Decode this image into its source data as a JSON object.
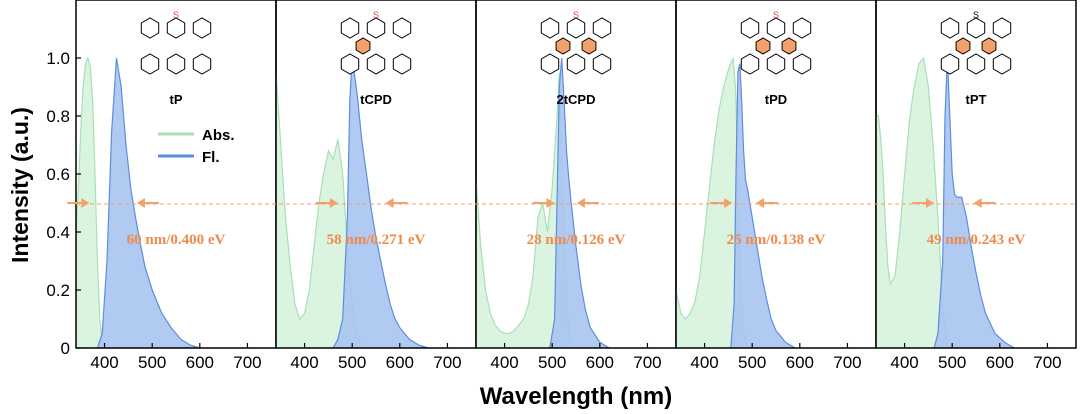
{
  "figure": {
    "ylabel": "Intensity (a.u.)",
    "xlabel": "Wavelength (nm)",
    "legend": {
      "abs_label": "Abs.",
      "fl_label": "Fl."
    }
  },
  "colors": {
    "abs_fill": "#d6f3dd",
    "abs_line": "#a8e0b6",
    "fl_fill": "#a9c4ef",
    "fl_line": "#5b8ede",
    "accent": "#f4a06a",
    "accent_text": "#f08a4b"
  },
  "chart_data": [
    {
      "type": "area",
      "name": "tP",
      "fwhm": "60 nm/0.400 eV",
      "xlim": [
        340,
        760
      ],
      "ylim": [
        0,
        1.2
      ],
      "xticks": [
        400,
        500,
        600,
        700
      ],
      "yticks": [
        0,
        0.2,
        0.4,
        0.6,
        0.8,
        1.0
      ],
      "half_max": 0.5,
      "absorption": {
        "x": [
          340,
          345,
          350,
          355,
          360,
          365,
          370,
          375,
          380,
          385,
          390,
          395,
          400
        ],
        "y": [
          0.4,
          0.55,
          0.75,
          0.9,
          0.98,
          1.0,
          0.97,
          0.85,
          0.6,
          0.3,
          0.1,
          0.02,
          0
        ]
      },
      "fluorescence": {
        "x": [
          385,
          395,
          405,
          415,
          425,
          435,
          445,
          455,
          465,
          475,
          485,
          500,
          520,
          540,
          560,
          580,
          600
        ],
        "y": [
          0,
          0.05,
          0.3,
          0.75,
          1.0,
          0.9,
          0.7,
          0.55,
          0.45,
          0.36,
          0.28,
          0.2,
          0.12,
          0.07,
          0.03,
          0.01,
          0
        ]
      },
      "arrows": [
        368,
        468
      ]
    },
    {
      "type": "area",
      "name": "tCPD",
      "fwhm": "58 nm/0.271 eV",
      "xlim": [
        340,
        760
      ],
      "ylim": [
        0,
        1.2
      ],
      "xticks": [
        400,
        500,
        600,
        700
      ],
      "yticks": [
        0,
        0.2,
        0.4,
        0.6,
        0.8,
        1.0
      ],
      "half_max": 0.5,
      "absorption": {
        "x": [
          340,
          350,
          360,
          370,
          380,
          390,
          400,
          410,
          420,
          430,
          440,
          450,
          460,
          470,
          480,
          490,
          500,
          510,
          520
        ],
        "y": [
          0.95,
          0.7,
          0.45,
          0.28,
          0.15,
          0.1,
          0.12,
          0.2,
          0.35,
          0.5,
          0.6,
          0.68,
          0.65,
          0.72,
          0.6,
          0.35,
          0.15,
          0.05,
          0
        ]
      },
      "fluorescence": {
        "x": [
          460,
          470,
          480,
          490,
          495,
          500,
          510,
          520,
          530,
          540,
          550,
          560,
          570,
          580,
          590,
          600,
          620,
          640,
          660
        ],
        "y": [
          0,
          0.03,
          0.1,
          0.45,
          0.85,
          1.0,
          0.88,
          0.72,
          0.6,
          0.48,
          0.38,
          0.3,
          0.22,
          0.15,
          0.1,
          0.07,
          0.03,
          0.01,
          0
        ]
      },
      "arrows": [
        470,
        570
      ]
    },
    {
      "type": "area",
      "name": "2tCPD",
      "fwhm": "28 nm/0.126 eV",
      "xlim": [
        340,
        760
      ],
      "ylim": [
        0,
        1.2
      ],
      "xticks": [
        400,
        500,
        600,
        700
      ],
      "yticks": [
        0,
        0.2,
        0.4,
        0.6,
        0.8,
        1.0
      ],
      "half_max": 0.5,
      "absorption": {
        "x": [
          340,
          350,
          360,
          370,
          380,
          390,
          400,
          410,
          420,
          430,
          440,
          450,
          460,
          470,
          480,
          490,
          500,
          510,
          515,
          520,
          530,
          540
        ],
        "y": [
          0.58,
          0.35,
          0.2,
          0.12,
          0.08,
          0.06,
          0.05,
          0.05,
          0.06,
          0.08,
          0.1,
          0.15,
          0.25,
          0.45,
          0.5,
          0.4,
          0.55,
          0.8,
          0.95,
          0.7,
          0.15,
          0
        ]
      },
      "fluorescence": {
        "x": [
          495,
          505,
          510,
          515,
          520,
          525,
          530,
          535,
          540,
          550,
          560,
          570,
          580,
          600,
          620
        ],
        "y": [
          0,
          0.1,
          0.5,
          0.9,
          1.0,
          0.85,
          0.68,
          0.58,
          0.5,
          0.35,
          0.22,
          0.13,
          0.07,
          0.02,
          0
        ]
      },
      "arrows": [
        505,
        552
      ]
    },
    {
      "type": "area",
      "name": "tPD",
      "fwhm": "25 nm/0.138 eV",
      "xlim": [
        340,
        760
      ],
      "ylim": [
        0,
        1.2
      ],
      "xticks": [
        400,
        500,
        600,
        700
      ],
      "yticks": [
        0,
        0.2,
        0.4,
        0.6,
        0.8,
        1.0
      ],
      "half_max": 0.5,
      "absorption": {
        "x": [
          340,
          350,
          360,
          370,
          380,
          390,
          400,
          410,
          420,
          430,
          440,
          450,
          460,
          465,
          470,
          475,
          480,
          490
        ],
        "y": [
          0.2,
          0.12,
          0.1,
          0.12,
          0.16,
          0.25,
          0.4,
          0.55,
          0.7,
          0.82,
          0.9,
          0.96,
          1.0,
          0.9,
          0.6,
          0.25,
          0.08,
          0
        ]
      },
      "fluorescence": {
        "x": [
          455,
          462,
          466,
          470,
          474,
          478,
          482,
          486,
          490,
          500,
          510,
          520,
          530,
          540,
          550,
          570,
          590
        ],
        "y": [
          0,
          0.15,
          0.6,
          0.95,
          0.98,
          0.85,
          0.68,
          0.58,
          0.55,
          0.45,
          0.35,
          0.25,
          0.17,
          0.1,
          0.06,
          0.02,
          0
        ]
      },
      "arrows": [
        458,
        508
      ]
    },
    {
      "type": "area",
      "name": "tPT",
      "fwhm": "49 nm/0.243 eV",
      "xlim": [
        340,
        760
      ],
      "ylim": [
        0,
        1.2
      ],
      "xticks": [
        400,
        500,
        600,
        700
      ],
      "yticks": [
        0,
        0.2,
        0.4,
        0.6,
        0.8,
        1.0
      ],
      "half_max": 0.5,
      "absorption": {
        "x": [
          340,
          345,
          350,
          355,
          360,
          365,
          370,
          380,
          390,
          400,
          410,
          420,
          430,
          440,
          450,
          460,
          470,
          480,
          490
        ],
        "y": [
          0.8,
          0.8,
          0.72,
          0.6,
          0.42,
          0.28,
          0.22,
          0.25,
          0.4,
          0.6,
          0.78,
          0.9,
          0.98,
          1.0,
          0.9,
          0.7,
          0.45,
          0.15,
          0
        ]
      },
      "fluorescence": {
        "x": [
          462,
          470,
          480,
          485,
          490,
          495,
          500,
          505,
          510,
          520,
          530,
          540,
          550,
          560,
          570,
          590,
          610,
          630
        ],
        "y": [
          0,
          0.05,
          0.3,
          0.8,
          1.0,
          0.8,
          0.6,
          0.53,
          0.52,
          0.52,
          0.45,
          0.35,
          0.26,
          0.18,
          0.12,
          0.05,
          0.02,
          0
        ]
      },
      "arrows": [
        462,
        545
      ]
    }
  ]
}
